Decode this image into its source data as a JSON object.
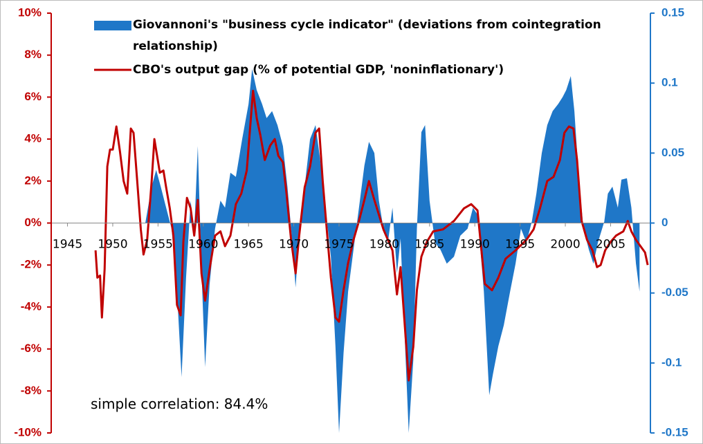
{
  "chart_data": {
    "type": "combo",
    "annotation": "simple correlation: 84.4%",
    "xlim": [
      1943.2,
      2009.4
    ],
    "xticks": [
      1945,
      1950,
      1955,
      1960,
      1965,
      1970,
      1975,
      1980,
      1985,
      1990,
      1995,
      2000,
      2005
    ],
    "ylim": [
      -10,
      10
    ],
    "yticks": [
      {
        "value": 10,
        "label": "10%"
      },
      {
        "value": 8,
        "label": "8%"
      },
      {
        "value": 6,
        "label": "6%"
      },
      {
        "value": 4,
        "label": "4%"
      },
      {
        "value": 2,
        "label": "2%"
      },
      {
        "value": 0,
        "label": "0%"
      },
      {
        "value": -2,
        "label": "-2%"
      },
      {
        "value": -4,
        "label": "-4%"
      },
      {
        "value": -6,
        "label": "-6%"
      },
      {
        "value": -8,
        "label": "-8%"
      },
      {
        "value": -10,
        "label": "-10%"
      }
    ],
    "y2lim": [
      -0.15,
      0.15
    ],
    "y2ticks": [
      0.15,
      0.1,
      0.05,
      0,
      -0.05,
      -0.1,
      -0.15
    ],
    "grid": false,
    "legend": "top",
    "series": [
      {
        "name": "Giovannoni's \"business cycle indicator\" (deviations from cointegration relationship)",
        "type": "area",
        "axis": "y2",
        "color": "#1f77c8",
        "x": [
          1953.6,
          1954.3,
          1954.8,
          1955.3,
          1955.9,
          1956.5,
          1957.1,
          1957.6,
          1958.1,
          1958.6,
          1959.0,
          1959.4,
          1959.8,
          1960.2,
          1960.7,
          1961.3,
          1961.9,
          1962.4,
          1963.0,
          1963.6,
          1964.3,
          1965.0,
          1965.4,
          1965.9,
          1966.5,
          1967.0,
          1967.6,
          1968.2,
          1968.8,
          1969.3,
          1969.7,
          1970.2,
          1970.6,
          1971.2,
          1971.8,
          1972.4,
          1972.9,
          1973.5,
          1974.1,
          1974.6,
          1975.0,
          1975.5,
          1976.0,
          1976.6,
          1977.2,
          1977.8,
          1978.3,
          1978.9,
          1979.4,
          1979.9,
          1980.4,
          1980.9,
          1981.4,
          1981.8,
          1982.2,
          1982.7,
          1983.2,
          1983.6,
          1984.1,
          1984.5,
          1985.0,
          1985.6,
          1986.2,
          1986.9,
          1987.7,
          1988.4,
          1989.2,
          1989.8,
          1990.3,
          1991.0,
          1991.6,
          1992.0,
          1992.6,
          1993.2,
          1993.9,
          1994.5,
          1995.1,
          1995.7,
          1996.3,
          1996.8,
          1997.4,
          1998.0,
          1998.6,
          1999.2,
          1999.7,
          2000.1,
          2000.6,
          2001.0,
          2001.5,
          2002.0,
          2002.6,
          2003.1,
          2003.6,
          2004.3,
          2004.7,
          2005.2,
          2005.8,
          2006.2,
          2006.8,
          2007.3,
          2007.8,
          2008.2
        ],
        "values": [
          0,
          0.026,
          0.038,
          0.026,
          0.011,
          -0.004,
          -0.049,
          -0.11,
          -0.039,
          0.016,
          -0.006,
          0.055,
          -0.034,
          -0.103,
          -0.044,
          -0.004,
          0.016,
          0.011,
          0.036,
          0.033,
          0.06,
          0.085,
          0.11,
          0.095,
          0.085,
          0.075,
          0.08,
          0.07,
          0.055,
          0.026,
          -0.004,
          -0.046,
          -0.009,
          0.026,
          0.06,
          0.07,
          0.046,
          0.011,
          -0.024,
          -0.088,
          -0.15,
          -0.093,
          -0.049,
          -0.019,
          0.011,
          0.041,
          0.058,
          0.05,
          0.016,
          -0.004,
          -0.014,
          0.011,
          -0.036,
          -0.011,
          -0.073,
          -0.15,
          -0.098,
          -0.004,
          0.065,
          0.07,
          0.016,
          -0.014,
          -0.019,
          -0.029,
          -0.024,
          -0.009,
          -0.004,
          0.011,
          0.006,
          -0.049,
          -0.123,
          -0.108,
          -0.088,
          -0.073,
          -0.049,
          -0.029,
          -0.004,
          -0.014,
          0.001,
          0.021,
          0.05,
          0.07,
          0.08,
          0.085,
          0.09,
          0.095,
          0.105,
          0.08,
          0.031,
          -0.004,
          -0.019,
          -0.029,
          -0.014,
          0.001,
          0.021,
          0.026,
          0.011,
          0.031,
          0.032,
          0.011,
          -0.029,
          -0.049
        ]
      },
      {
        "name": "CBO's output gap (% of potential GDP, 'noninflationary')",
        "type": "line",
        "axis": "y",
        "color": "#c00000",
        "x": [
          1948.1,
          1948.3,
          1948.6,
          1948.8,
          1949.1,
          1949.4,
          1949.7,
          1950.0,
          1950.4,
          1950.8,
          1951.2,
          1951.6,
          1952.0,
          1952.3,
          1952.7,
          1953.1,
          1953.4,
          1953.8,
          1954.3,
          1954.6,
          1955.2,
          1955.6,
          1955.9,
          1956.3,
          1956.7,
          1957.1,
          1957.5,
          1957.8,
          1958.2,
          1958.6,
          1959.0,
          1959.4,
          1959.8,
          1960.2,
          1960.7,
          1961.3,
          1961.9,
          1962.4,
          1963.0,
          1963.6,
          1964.2,
          1964.8,
          1965.5,
          1965.9,
          1966.3,
          1966.8,
          1967.4,
          1967.9,
          1968.3,
          1968.8,
          1969.2,
          1969.7,
          1970.2,
          1970.6,
          1971.2,
          1971.8,
          1972.4,
          1972.8,
          1973.2,
          1973.7,
          1974.1,
          1974.6,
          1975.0,
          1975.5,
          1976.0,
          1976.6,
          1977.2,
          1977.8,
          1978.3,
          1978.9,
          1979.4,
          1979.9,
          1980.4,
          1980.9,
          1981.4,
          1981.8,
          1982.2,
          1982.7,
          1983.2,
          1983.6,
          1984.1,
          1984.7,
          1985.4,
          1986.5,
          1987.7,
          1988.8,
          1989.6,
          1990.3,
          1991.1,
          1991.9,
          1992.6,
          1993.4,
          1994.5,
          1995.7,
          1996.5,
          1997.2,
          1998.0,
          1998.7,
          1999.4,
          1999.9,
          2000.4,
          2000.9,
          2001.3,
          2001.8,
          2002.4,
          2003.0,
          2003.5,
          2003.9,
          2004.4,
          2005.0,
          2005.6,
          2006.4,
          2006.9,
          2007.3,
          2007.8,
          2008.3,
          2008.8,
          2009.1
        ],
        "values": [
          -1.3,
          -2.6,
          -2.5,
          -4.5,
          -2.2,
          2.7,
          3.5,
          3.5,
          4.6,
          3.4,
          2.0,
          1.4,
          4.5,
          4.3,
          2.0,
          -0.3,
          -1.5,
          -0.8,
          2.0,
          4.0,
          2.4,
          2.5,
          1.7,
          0.7,
          -0.6,
          -3.9,
          -4.4,
          -0.9,
          1.2,
          0.7,
          -0.6,
          1.1,
          -2.4,
          -3.7,
          -2.2,
          -0.6,
          -0.4,
          -1.1,
          -0.6,
          0.9,
          1.4,
          2.5,
          6.3,
          5.0,
          4.2,
          3.0,
          3.7,
          4.0,
          3.2,
          2.9,
          1.4,
          -0.8,
          -2.4,
          -0.6,
          1.7,
          2.7,
          4.3,
          4.5,
          2.0,
          -0.6,
          -2.6,
          -4.5,
          -4.7,
          -3.2,
          -1.9,
          -0.8,
          0.1,
          1.1,
          2.0,
          1.1,
          0.4,
          -0.3,
          -0.8,
          -1.3,
          -3.4,
          -2.1,
          -4.5,
          -7.5,
          -5.9,
          -3.2,
          -1.6,
          -0.9,
          -0.4,
          -0.3,
          0.1,
          0.7,
          0.9,
          0.6,
          -2.9,
          -3.2,
          -2.6,
          -1.7,
          -1.3,
          -0.8,
          -0.3,
          0.7,
          2.0,
          2.2,
          3.0,
          4.3,
          4.6,
          4.5,
          3.0,
          0.1,
          -0.8,
          -1.3,
          -2.1,
          -2.0,
          -1.3,
          -0.9,
          -0.6,
          -0.4,
          0.1,
          -0.4,
          -0.8,
          -1.1,
          -1.4,
          -2.0
        ]
      }
    ]
  }
}
